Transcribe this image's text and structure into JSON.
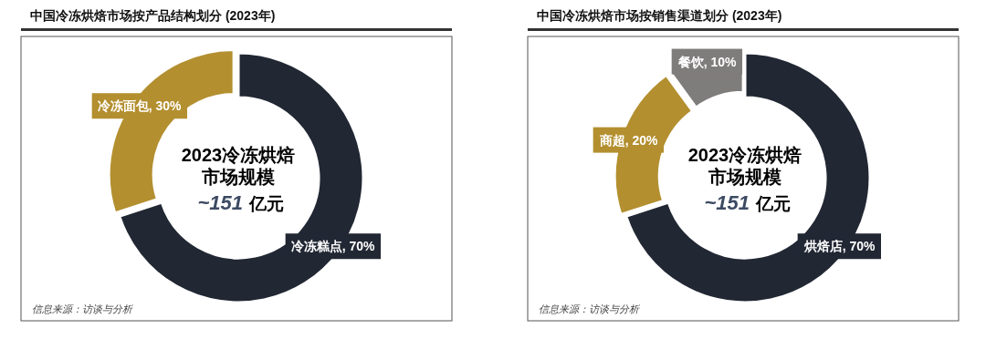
{
  "chart_data": [
    {
      "type": "donut",
      "title": "中国冷冻烘焙市场按产品结构划分 (2023年)",
      "categories": [
        "冷冻糕点",
        "冷冻面包"
      ],
      "values": [
        70,
        30
      ],
      "colors": [
        "#212733",
        "#b38f2f"
      ],
      "value_labels": [
        ", 70%",
        ", 30%"
      ],
      "annotations": [
        "2023冷冻烘焙",
        "市场规模",
        "~151",
        "亿元",
        "信息来源：访谈与分析"
      ]
    },
    {
      "type": "donut",
      "title": "中国冷冻烘焙市场按销售渠道划分 (2023年)",
      "categories": [
        "烘焙店",
        "商超",
        "餐饮"
      ],
      "values": [
        70,
        20,
        10
      ],
      "colors": [
        "#212733",
        "#b38f2f",
        "#7f7c7c"
      ],
      "value_labels": [
        ", 70%",
        ", 20%",
        ", 10%"
      ],
      "annotations": [
        "2023冷冻烘焙",
        "市场规模",
        "~151",
        "亿元",
        "信息来源：访谈与分析"
      ]
    }
  ]
}
